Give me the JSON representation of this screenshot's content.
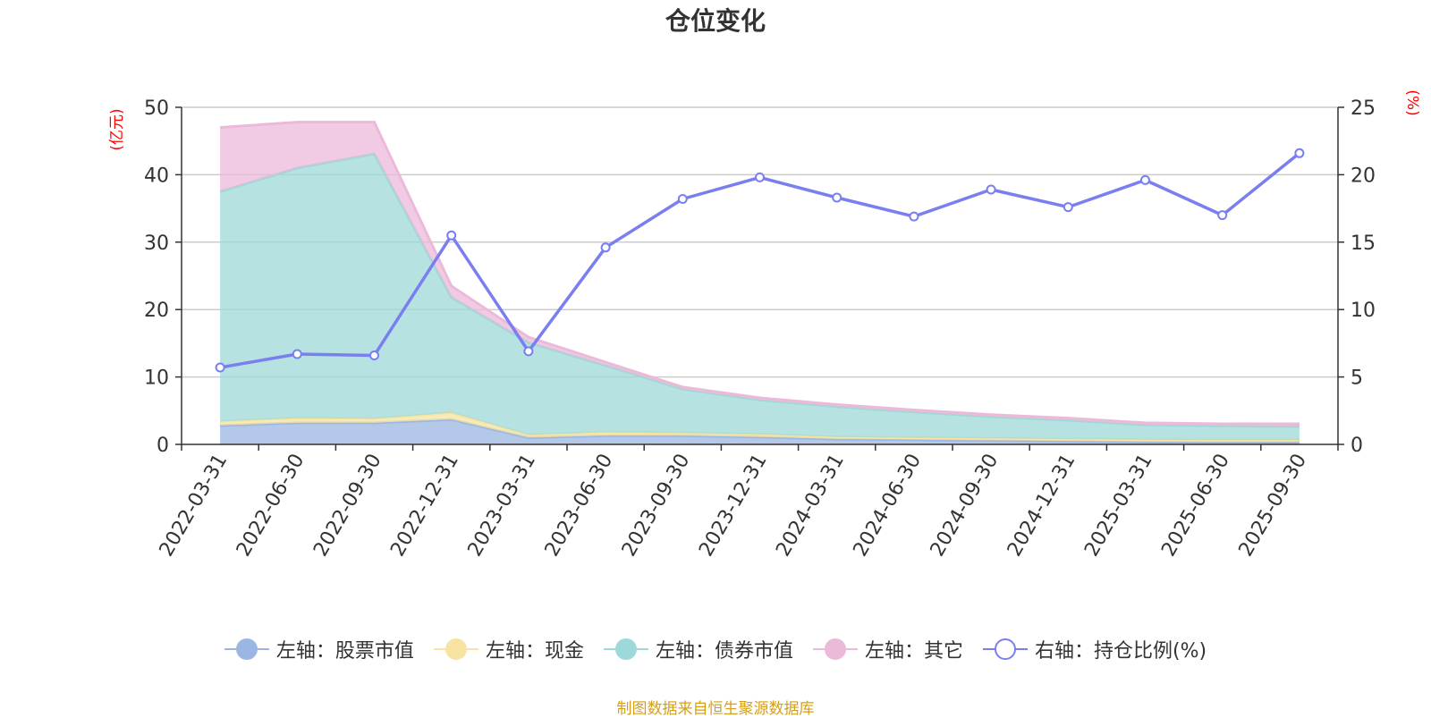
{
  "chart_data": {
    "type": "area",
    "title": "仓位变化",
    "left_axis_unit": "(亿元)",
    "right_axis_unit": "(%)",
    "categories": [
      "2022-03-31",
      "2022-06-30",
      "2022-09-30",
      "2022-12-31",
      "2023-03-31",
      "2023-06-30",
      "2023-09-30",
      "2023-12-31",
      "2024-03-31",
      "2024-06-30",
      "2024-09-30",
      "2024-12-31",
      "2025-03-31",
      "2025-06-30",
      "2025-09-30"
    ],
    "left_ylim": [
      0,
      50
    ],
    "left_ticks": [
      "0",
      "10",
      "20",
      "30",
      "40",
      "50"
    ],
    "right_ylim": [
      0,
      25
    ],
    "right_ticks": [
      "0",
      "5",
      "10",
      "15",
      "20",
      "25"
    ],
    "stacked_series": [
      {
        "name": "左轴：股票市值",
        "color": "#9bb6e3",
        "values": [
          2.8,
          3.2,
          3.2,
          3.7,
          1.0,
          1.3,
          1.3,
          1.1,
          0.8,
          0.7,
          0.6,
          0.5,
          0.4,
          0.35,
          0.35
        ]
      },
      {
        "name": "左轴：现金",
        "color": "#f7e4a2",
        "values": [
          0.6,
          0.7,
          0.6,
          1.0,
          0.4,
          0.5,
          0.4,
          0.4,
          0.3,
          0.3,
          0.3,
          0.3,
          0.3,
          0.3,
          0.3
        ]
      },
      {
        "name": "左轴：债券市值",
        "color": "#9dd9d8",
        "values": [
          34.1,
          37.1,
          39.3,
          17.1,
          13.7,
          9.9,
          6.5,
          5.1,
          4.5,
          3.8,
          3.2,
          2.8,
          2.2,
          2.1,
          2.0
        ]
      },
      {
        "name": "左轴：其它",
        "color": "#ebbad9",
        "values": [
          9.5,
          6.8,
          4.7,
          1.7,
          0.8,
          0.5,
          0.3,
          0.3,
          0.3,
          0.3,
          0.3,
          0.3,
          0.3,
          0.3,
          0.4
        ]
      }
    ],
    "line_series": {
      "name": "右轴：持仓比例(%)",
      "color": "#7a7ff0",
      "values": [
        5.7,
        6.7,
        6.6,
        15.5,
        6.9,
        14.6,
        18.2,
        19.8,
        18.3,
        16.9,
        18.9,
        17.6,
        19.6,
        17.0,
        21.6
      ]
    },
    "legend_position": "bottom",
    "source": "制图数据来自恒生聚源数据库"
  }
}
